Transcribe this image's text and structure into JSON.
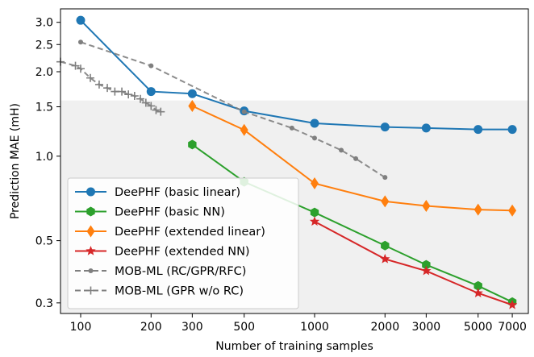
{
  "chart_data": {
    "type": "line",
    "title": "",
    "xlabel": "Number of training samples",
    "ylabel": "Prediction MAE (mH)",
    "xscale": "log",
    "yscale": "log",
    "xlim": [
      82,
      8200
    ],
    "ylim": [
      0.275,
      3.35
    ],
    "grid": false,
    "legend_position": "lower-left",
    "shaded_region": {
      "y_max": 1.58,
      "color": "#f0f0f0"
    },
    "x_ticks": [
      {
        "value": 100,
        "label": "100"
      },
      {
        "value": 200,
        "label": "200"
      },
      {
        "value": 300,
        "label": "300"
      },
      {
        "value": 500,
        "label": "500"
      },
      {
        "value": 1000,
        "label": "1000"
      },
      {
        "value": 2000,
        "label": "2000"
      },
      {
        "value": 3000,
        "label": "3000"
      },
      {
        "value": 5000,
        "label": "5000"
      },
      {
        "value": 7000,
        "label": "7000"
      }
    ],
    "y_ticks": [
      {
        "value": 0.3,
        "label": "0.3"
      },
      {
        "value": 0.5,
        "label": "0.5"
      },
      {
        "value": 1.0,
        "label": "1.0"
      },
      {
        "value": 1.5,
        "label": "1.5"
      },
      {
        "value": 2.0,
        "label": "2.0"
      },
      {
        "value": 2.5,
        "label": "2.5"
      },
      {
        "value": 3.0,
        "label": "3.0"
      }
    ],
    "series": [
      {
        "name": "DeePHF (basic linear)",
        "color": "#1f77b4",
        "marker": "circle",
        "linestyle": "solid",
        "x": [
          100,
          200,
          300,
          500,
          1000,
          2000,
          3000,
          5000,
          7000
        ],
        "y": [
          3.05,
          1.7,
          1.67,
          1.45,
          1.31,
          1.27,
          1.26,
          1.245,
          1.245
        ]
      },
      {
        "name": "DeePHF (basic NN)",
        "color": "#2ca02c",
        "marker": "hexagon",
        "linestyle": "solid",
        "x": [
          300,
          500,
          1000,
          2000,
          3000,
          5000,
          7000
        ],
        "y": [
          1.1,
          0.81,
          0.63,
          0.48,
          0.41,
          0.345,
          0.302
        ]
      },
      {
        "name": "DeePHF (extended linear)",
        "color": "#ff7f0e",
        "marker": "diamond",
        "linestyle": "solid",
        "x": [
          300,
          500,
          1000,
          2000,
          3000,
          5000,
          7000
        ],
        "y": [
          1.51,
          1.24,
          0.8,
          0.69,
          0.665,
          0.645,
          0.64
        ]
      },
      {
        "name": "DeePHF (extended NN)",
        "color": "#d62728",
        "marker": "star",
        "linestyle": "solid",
        "x": [
          1000,
          2000,
          3000,
          5000,
          7000
        ],
        "y": [
          0.585,
          0.43,
          0.39,
          0.325,
          0.295
        ]
      },
      {
        "name": "MOB-ML (RC/GPR/RFC)",
        "color": "#7f7f7f",
        "marker": "dot",
        "linestyle": "dashed",
        "x": [
          100,
          200,
          500,
          800,
          1000,
          1300,
          1500,
          2000
        ],
        "y": [
          2.55,
          2.1,
          1.44,
          1.26,
          1.16,
          1.05,
          0.98,
          0.84
        ]
      },
      {
        "name": "MOB-ML (GPR w/o RC)",
        "color": "#7f7f7f",
        "marker": "plus",
        "linestyle": "dashed",
        "x": [
          82,
          95,
          100,
          110,
          120,
          130,
          140,
          150,
          160,
          170,
          180,
          190,
          200,
          210,
          220
        ],
        "y": [
          2.17,
          2.1,
          2.05,
          1.9,
          1.8,
          1.75,
          1.7,
          1.7,
          1.66,
          1.64,
          1.6,
          1.55,
          1.51,
          1.46,
          1.44
        ]
      }
    ]
  }
}
